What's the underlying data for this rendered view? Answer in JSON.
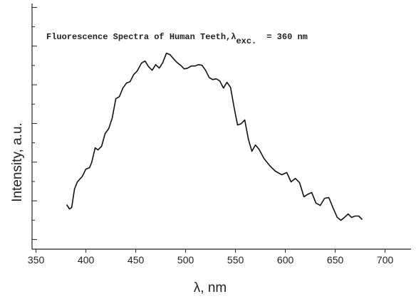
{
  "chart_data": {
    "type": "line",
    "title": "Fluorescence Spectra of Human Teeth,λ",
    "title_subscript": "exc.",
    "title_suffix": "= 360 nm",
    "x_label": "λ, nm",
    "y_label": "Intensity, a.u.",
    "xlim": [
      346,
      726
    ],
    "xticks": [
      350,
      400,
      450,
      500,
      550,
      600,
      650,
      700
    ],
    "ylim": [
      -0.5,
      12.2
    ],
    "yticks": [
      0,
      1,
      2,
      3,
      4,
      5,
      6,
      7,
      8,
      9,
      10,
      11,
      12
    ],
    "color": "#111111",
    "x": [
      380.7,
      383.6,
      385.7,
      388.6,
      391.4,
      396.4,
      400,
      403.6,
      405.7,
      409.3,
      412.1,
      415.7,
      419.3,
      422.9,
      426.4,
      430,
      433.6,
      437.1,
      440.7,
      444.3,
      447.9,
      451.4,
      455.7,
      459.3,
      462.9,
      466.4,
      470,
      473.6,
      477.1,
      480.7,
      484.3,
      487.9,
      491.4,
      495,
      498.6,
      502.1,
      505.7,
      509.3,
      512.9,
      516.4,
      520,
      523.6,
      527.1,
      530.7,
      534.3,
      537.9,
      541.4,
      545,
      548.6,
      552.1,
      555.7,
      559.3,
      562.9,
      566.4,
      570,
      573.6,
      578.6,
      584.3,
      590,
      596.4,
      601.4,
      605.7,
      610,
      614.3,
      618.6,
      622.9,
      626.4,
      630.7,
      635,
      639.3,
      643.6,
      647.9,
      652.1,
      655.7,
      659.3,
      662.9,
      666.4,
      670,
      673.6,
      677.1
    ],
    "values": [
      1.8,
      1.58,
      1.65,
      2.61,
      2.98,
      3.27,
      3.64,
      3.71,
      3.97,
      4.74,
      4.63,
      4.82,
      5.48,
      5.74,
      6.29,
      7.28,
      7.39,
      7.83,
      8.09,
      8.16,
      8.53,
      8.71,
      9.12,
      9.23,
      8.93,
      8.75,
      9.04,
      8.86,
      9.15,
      9.63,
      9.56,
      9.34,
      9.15,
      9.01,
      8.82,
      8.86,
      8.97,
      8.97,
      9.04,
      9.01,
      8.75,
      8.38,
      8.27,
      8.31,
      8.2,
      7.83,
      8.13,
      7.87,
      6.84,
      5.92,
      5.99,
      6.18,
      5.18,
      4.56,
      4.89,
      4.67,
      4.19,
      3.82,
      3.53,
      3.35,
      3.46,
      2.98,
      3.16,
      2.94,
      2.21,
      2.35,
      2.43,
      1.88,
      1.76,
      2.13,
      2.17,
      1.62,
      1.14,
      0.99,
      1.14,
      1.32,
      1.14,
      1.21,
      1.21,
      1.03
    ]
  }
}
